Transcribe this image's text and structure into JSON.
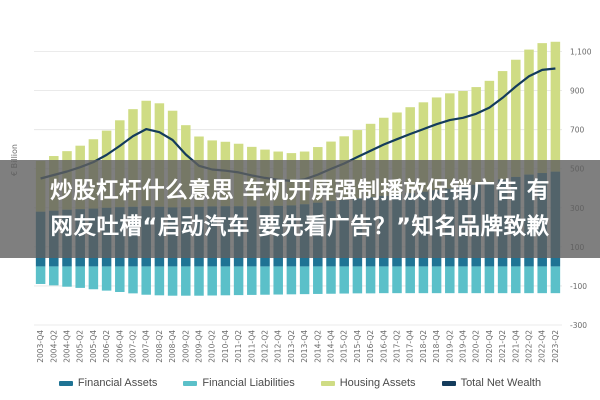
{
  "banner": {
    "line1": "炒股杠杆什么意思 车机开屏强制播放促销广告 有",
    "line2": "网友吐槽“启动汽车 要先看广告？”知名品牌致歉"
  },
  "chart_data": {
    "type": "area",
    "ylabel": "€ Billion",
    "ylim": [
      -300,
      1200
    ],
    "y_ticks": [
      -300,
      -100,
      100,
      300,
      500,
      700,
      900,
      1100
    ],
    "y_tick_labels": [
      "-300",
      "-100",
      "100",
      "300",
      "500",
      "700",
      "900",
      "1,100"
    ],
    "grid": true,
    "legend_position": "bottom",
    "colors": {
      "financial_assets": "#1f7394",
      "financial_liabilities": "#5bc0c9",
      "housing_assets": "#cfdc84",
      "net_wealth": "#143c5c"
    },
    "x": [
      "2003-Q4",
      "2004-Q2",
      "2004-Q4",
      "2005-Q2",
      "2005-Q4",
      "2006-Q2",
      "2006-Q4",
      "2007-Q2",
      "2007-Q4",
      "2008-Q2",
      "2008-Q4",
      "2009-Q2",
      "2009-Q4",
      "2010-Q2",
      "2010-Q4",
      "2011-Q2",
      "2011-Q4",
      "2012-Q2",
      "2012-Q4",
      "2013-Q2",
      "2013-Q4",
      "2014-Q2",
      "2014-Q4",
      "2015-Q2",
      "2015-Q4",
      "2016-Q2",
      "2016-Q4",
      "2017-Q2",
      "2017-Q4",
      "2018-Q2",
      "2018-Q4",
      "2019-Q2",
      "2019-Q4",
      "2020-Q2",
      "2020-Q4",
      "2021-Q2",
      "2021-Q4",
      "2022-Q2",
      "2022-Q4",
      "2023-Q2"
    ],
    "series": [
      {
        "name": "Financial Assets",
        "key": "financial_assets",
        "values": [
          280,
          285,
          290,
          293,
          296,
          300,
          303,
          305,
          308,
          305,
          302,
          303,
          305,
          307,
          308,
          308,
          307,
          308,
          310,
          312,
          318,
          326,
          334,
          341,
          348,
          355,
          361,
          368,
          375,
          382,
          390,
          398,
          408,
          418,
          430,
          445,
          458,
          470,
          478,
          485
        ]
      },
      {
        "name": "Financial Liabilities",
        "key": "financial_liabilities",
        "values": [
          -90,
          -97,
          -104,
          -110,
          -117,
          -124,
          -131,
          -138,
          -145,
          -148,
          -150,
          -150,
          -150,
          -149,
          -148,
          -147,
          -146,
          -145,
          -144,
          -143,
          -142,
          -141,
          -140,
          -139,
          -138,
          -138,
          -137,
          -137,
          -137,
          -137,
          -137,
          -137,
          -137,
          -137,
          -137,
          -137,
          -137,
          -137,
          -137,
          -137
        ]
      },
      {
        "name": "Housing Assets",
        "key": "housing_assets",
        "values": [
          260,
          280,
          300,
          325,
          355,
          395,
          445,
          500,
          540,
          530,
          495,
          420,
          360,
          338,
          330,
          320,
          305,
          290,
          278,
          268,
          270,
          285,
          305,
          325,
          350,
          375,
          400,
          420,
          440,
          458,
          475,
          488,
          490,
          500,
          520,
          555,
          600,
          640,
          665,
          665
        ]
      },
      {
        "name": "Total Net Wealth",
        "key": "net_wealth",
        "values": [
          450,
          468,
          486,
          508,
          534,
          571,
          617,
          667,
          703,
          687,
          647,
          573,
          515,
          496,
          490,
          481,
          466,
          453,
          444,
          437,
          446,
          470,
          499,
          527,
          560,
          592,
          624,
          651,
          678,
          703,
          728,
          749,
          761,
          781,
          813,
          863,
          921,
          973,
          1006,
          1013
        ]
      }
    ]
  }
}
